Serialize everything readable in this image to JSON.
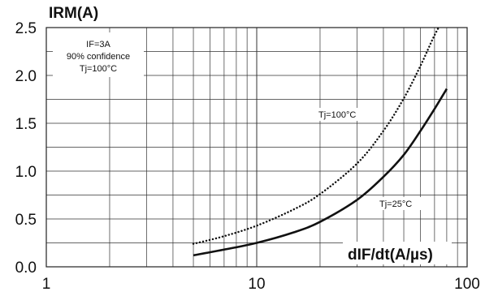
{
  "chart_data": {
    "type": "line",
    "x_scale": "log",
    "xlim": [
      1,
      100
    ],
    "ylim": [
      0.0,
      2.5
    ],
    "grid": true,
    "x_ticks": [
      "1",
      "10",
      "100"
    ],
    "y_ticks": [
      "0.0",
      "0.5",
      "1.0",
      "1.5",
      "2.0",
      "2.5"
    ],
    "ylabel": "IRM(A)",
    "xlabel": "dIF/dt(A/µs)",
    "conditions": [
      "IF=3A",
      "90% confidence",
      "Tj=100°C"
    ],
    "series": [
      {
        "name": "Tj=100°C",
        "style": "dotted",
        "points": [
          [
            5,
            0.24
          ],
          [
            7,
            0.32
          ],
          [
            10,
            0.43
          ],
          [
            15,
            0.6
          ],
          [
            20,
            0.76
          ],
          [
            30,
            1.08
          ],
          [
            40,
            1.42
          ],
          [
            50,
            1.76
          ],
          [
            60,
            2.1
          ],
          [
            70,
            2.42
          ],
          [
            80,
            2.65
          ]
        ]
      },
      {
        "name": "Tj=25°C",
        "style": "solid",
        "points": [
          [
            5,
            0.12
          ],
          [
            7,
            0.18
          ],
          [
            10,
            0.25
          ],
          [
            15,
            0.36
          ],
          [
            20,
            0.47
          ],
          [
            30,
            0.7
          ],
          [
            40,
            0.94
          ],
          [
            50,
            1.17
          ],
          [
            60,
            1.42
          ],
          [
            70,
            1.65
          ],
          [
            80,
            1.86
          ]
        ]
      }
    ]
  }
}
